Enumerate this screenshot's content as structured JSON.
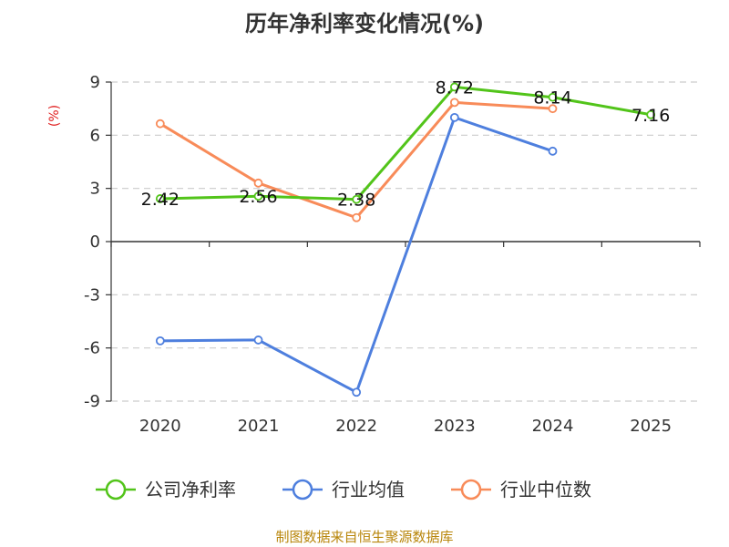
{
  "chart_data": {
    "type": "line",
    "title": "历年净利率变化情况(%)",
    "ylabel": "(%)",
    "xlabel": "",
    "categories": [
      "2020",
      "2021",
      "2022",
      "2023",
      "2024",
      "2025"
    ],
    "ylim": [
      -9,
      9
    ],
    "yticks": [
      9,
      6,
      3,
      0,
      -3,
      -6,
      -9
    ],
    "grid": true,
    "legend_position": "bottom",
    "series": [
      {
        "name": "公司净利率",
        "color": "#52c41a",
        "values": [
          2.42,
          2.56,
          2.38,
          8.72,
          8.14,
          7.16
        ],
        "labels": [
          "2.42",
          "2.56",
          "2.38",
          "8.72",
          "8.14",
          "7.16"
        ]
      },
      {
        "name": "行业均值",
        "color": "#4e7fde",
        "values": [
          -5.6,
          -5.55,
          -8.5,
          7.0,
          5.1,
          null
        ]
      },
      {
        "name": "行业中位数",
        "color": "#f88b59",
        "values": [
          6.65,
          3.3,
          1.35,
          7.85,
          7.5,
          null
        ]
      }
    ],
    "source": "制图数据来自恒生聚源数据库"
  },
  "colors": {
    "axis": "#333333",
    "grid": "#cccccc",
    "unit_label": "#e02020",
    "source": "#b8860b"
  }
}
